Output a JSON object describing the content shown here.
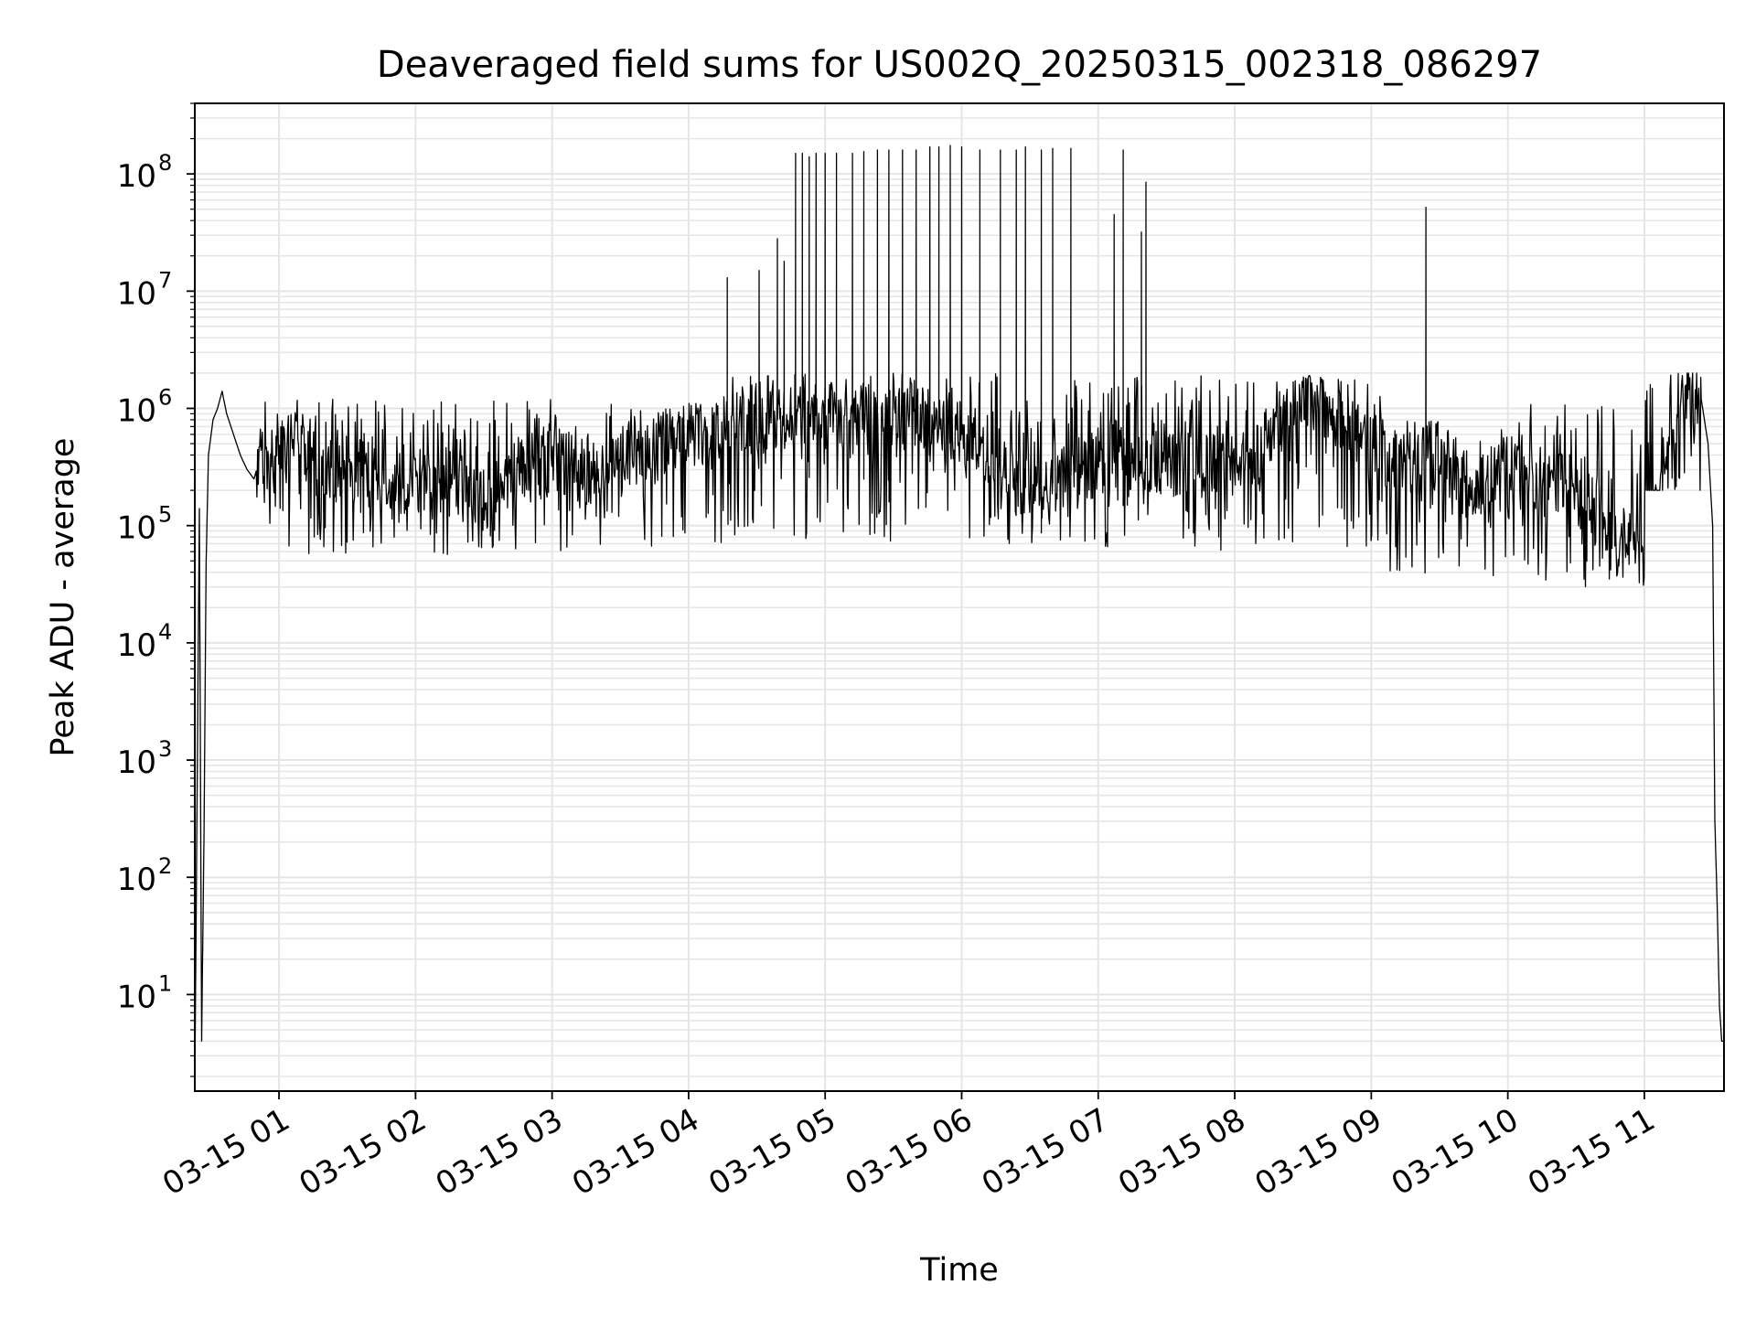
{
  "chart_data": {
    "type": "line",
    "title": "Deaveraged field sums for US002Q_20250315_002318_086297",
    "xlabel": "Time",
    "ylabel": "Peak ADU - average",
    "yscale": "log",
    "xlim": [
      "2025-03-15T00:23:00",
      "2025-03-15T11:35:00"
    ],
    "ylim": [
      1.5,
      400000000.0
    ],
    "grid": true,
    "line_color": "#000000",
    "grid_color": "#e5e5e5",
    "x_ticks": [
      {
        "value": "2025-03-15T01:00",
        "label": "03-15 01"
      },
      {
        "value": "2025-03-15T02:00",
        "label": "03-15 02"
      },
      {
        "value": "2025-03-15T03:00",
        "label": "03-15 03"
      },
      {
        "value": "2025-03-15T04:00",
        "label": "03-15 04"
      },
      {
        "value": "2025-03-15T05:00",
        "label": "03-15 05"
      },
      {
        "value": "2025-03-15T06:00",
        "label": "03-15 06"
      },
      {
        "value": "2025-03-15T07:00",
        "label": "03-15 07"
      },
      {
        "value": "2025-03-15T08:00",
        "label": "03-15 08"
      },
      {
        "value": "2025-03-15T09:00",
        "label": "03-15 09"
      },
      {
        "value": "2025-03-15T10:00",
        "label": "03-15 10"
      },
      {
        "value": "2025-03-15T11:00",
        "label": "03-15 11"
      }
    ],
    "y_ticks": [
      {
        "value": 10,
        "label": "10",
        "exp": "1"
      },
      {
        "value": 100,
        "label": "10",
        "exp": "2"
      },
      {
        "value": 1000,
        "label": "10",
        "exp": "3"
      },
      {
        "value": 10000,
        "label": "10",
        "exp": "4"
      },
      {
        "value": 100000,
        "label": "10",
        "exp": "5"
      },
      {
        "value": 1000000,
        "label": "10",
        "exp": "6"
      },
      {
        "value": 10000000,
        "label": "10",
        "exp": "7"
      },
      {
        "value": 100000000,
        "label": "10",
        "exp": "8"
      }
    ],
    "series": [
      {
        "x": [
          "00:23",
          "00:25",
          "00:26",
          "00:27",
          "00:28",
          "00:29",
          "00:31",
          "00:33",
          "00:35",
          "00:37",
          "00:40",
          "00:43",
          "00:46",
          "00:49",
          "00:52",
          "00:55",
          "00:58",
          "01:05",
          "01:15",
          "01:30",
          "01:45",
          "02:00",
          "02:15",
          "02:30",
          "02:45",
          "03:00",
          "03:15",
          "03:30",
          "03:45",
          "04:00",
          "04:15",
          "04:30",
          "04:45",
          "05:00",
          "05:15",
          "05:30",
          "05:45",
          "06:00",
          "06:15",
          "06:30",
          "06:45",
          "07:00",
          "07:15",
          "07:30",
          "07:45",
          "08:00",
          "08:15",
          "08:30",
          "08:45",
          "09:00",
          "09:15",
          "09:30",
          "09:45",
          "10:00",
          "10:10",
          "10:20",
          "10:30",
          "10:40",
          "10:50",
          "11:00",
          "11:08",
          "11:14",
          "11:20",
          "11:25",
          "11:28",
          "11:30",
          "11:31",
          "11:32",
          "11:33",
          "11:34"
        ],
        "y": [
          1.5,
          140000,
          4,
          200,
          50000,
          400000,
          800000,
          1000000,
          1400000,
          900000,
          600000,
          400000,
          300000,
          250000,
          400000,
          400000,
          350000,
          500000,
          400000,
          300000,
          250000,
          250000,
          250000,
          200000,
          300000,
          350000,
          300000,
          350000,
          450000,
          600000,
          700000,
          800000,
          800000,
          900000,
          900000,
          900000,
          800000,
          600000,
          300000,
          200000,
          250000,
          350000,
          400000,
          350000,
          300000,
          400000,
          500000,
          1500000,
          800000,
          500000,
          300000,
          400000,
          200000,
          300000,
          200000,
          250000,
          200000,
          120000,
          80000,
          60000,
          200000,
          700000,
          1500000,
          1200000,
          500000,
          100000,
          300,
          60,
          8,
          4
        ]
      }
    ],
    "noise": {
      "description_seed": 20250315,
      "envelopes": [
        {
          "from": "00:50",
          "to": "03:05",
          "low": 55000,
          "high": 1200000
        },
        {
          "from": "03:05",
          "to": "04:15",
          "low": 65000,
          "high": 1100000
        },
        {
          "from": "04:15",
          "to": "06:40",
          "low": 70000,
          "high": 2000000
        },
        {
          "from": "06:40",
          "to": "09:05",
          "low": 60000,
          "high": 1900000
        },
        {
          "from": "09:05",
          "to": "10:10",
          "low": 30000,
          "high": 800000
        },
        {
          "from": "10:10",
          "to": "11:00",
          "low": 30000,
          "high": 1100000
        },
        {
          "from": "11:00",
          "to": "11:25",
          "low": 200000,
          "high": 2000000
        }
      ]
    },
    "spikes": [
      {
        "x": "04:17",
        "y": 13000000
      },
      {
        "x": "04:31",
        "y": 15000000
      },
      {
        "x": "04:39",
        "y": 28000000
      },
      {
        "x": "04:42",
        "y": 18000000
      },
      {
        "x": "04:47",
        "y": 150000000
      },
      {
        "x": "04:50",
        "y": 150000000
      },
      {
        "x": "04:53",
        "y": 140000000
      },
      {
        "x": "04:56",
        "y": 150000000
      },
      {
        "x": "05:00",
        "y": 150000000
      },
      {
        "x": "05:05",
        "y": 150000000
      },
      {
        "x": "05:12",
        "y": 150000000
      },
      {
        "x": "05:17",
        "y": 155000000
      },
      {
        "x": "05:23",
        "y": 160000000
      },
      {
        "x": "05:28",
        "y": 160000000
      },
      {
        "x": "05:34",
        "y": 160000000
      },
      {
        "x": "05:40",
        "y": 160000000
      },
      {
        "x": "05:46",
        "y": 170000000
      },
      {
        "x": "05:50",
        "y": 170000000
      },
      {
        "x": "05:55",
        "y": 175000000
      },
      {
        "x": "06:00",
        "y": 170000000
      },
      {
        "x": "06:08",
        "y": 160000000
      },
      {
        "x": "06:17",
        "y": 160000000
      },
      {
        "x": "06:24",
        "y": 160000000
      },
      {
        "x": "06:28",
        "y": 170000000
      },
      {
        "x": "06:35",
        "y": 160000000
      },
      {
        "x": "06:40",
        "y": 165000000
      },
      {
        "x": "06:48",
        "y": 165000000
      },
      {
        "x": "07:07",
        "y": 45000000
      },
      {
        "x": "07:11",
        "y": 160000000
      },
      {
        "x": "07:19",
        "y": 32000000
      },
      {
        "x": "07:21",
        "y": 85000000
      },
      {
        "x": "09:24",
        "y": 52000000
      }
    ]
  }
}
